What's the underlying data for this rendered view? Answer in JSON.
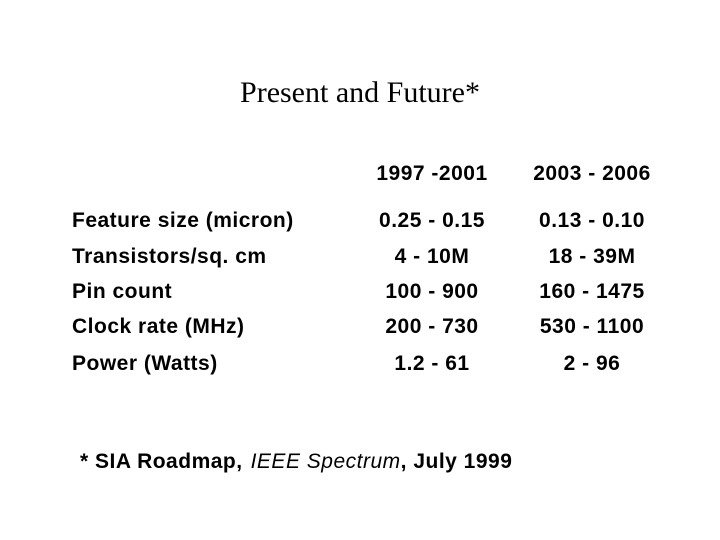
{
  "title": "Present and Future*",
  "table": {
    "columns": [
      "1997 -2001",
      "2003 - 2006"
    ],
    "rows": [
      [
        "Feature size (micron)",
        "0.25 - 0.15",
        "0.13 - 0.10"
      ],
      [
        "Transistors/sq. cm",
        "4 - 10M",
        "18 - 39M"
      ],
      [
        "Pin count",
        "100 - 900",
        "160 - 1475"
      ],
      [
        "Clock rate (MHz)",
        "200 - 730",
        "530 - 1100"
      ],
      [
        "Power (Watts)",
        "1.2 - 61",
        "2 - 96"
      ]
    ]
  },
  "footnote": {
    "prefix": "* SIA Roadmap,",
    "italic": "IEEE Spectrum",
    "suffix": ", July 1999"
  }
}
